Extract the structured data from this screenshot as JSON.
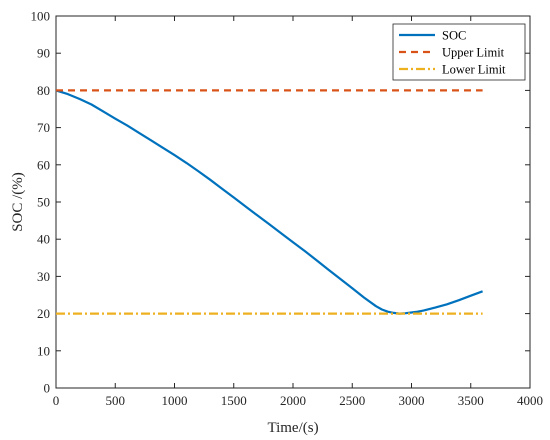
{
  "chart_data": {
    "type": "line",
    "title": "",
    "xlabel": "Time/(s)",
    "ylabel": "SOC /(%)",
    "xlim": [
      0,
      4000
    ],
    "ylim": [
      0,
      100
    ],
    "xticks": [
      0,
      500,
      1000,
      1500,
      2000,
      2500,
      3000,
      3500,
      4000
    ],
    "yticks": [
      0,
      10,
      20,
      30,
      40,
      50,
      60,
      70,
      80,
      90,
      100
    ],
    "grid": false,
    "legend_position": "top-right",
    "series": [
      {
        "name": "SOC",
        "style": "solid",
        "color": "#0072BD",
        "x": [
          0,
          100,
          200,
          300,
          400,
          500,
          600,
          700,
          800,
          900,
          1000,
          1100,
          1200,
          1300,
          1400,
          1500,
          1600,
          1700,
          1800,
          1900,
          2000,
          2100,
          2200,
          2300,
          2400,
          2500,
          2600,
          2700,
          2750,
          2800,
          2850,
          2900,
          2950,
          3000,
          3050,
          3100,
          3200,
          3300,
          3400,
          3500,
          3600
        ],
        "y": [
          80,
          79,
          77.7,
          76.2,
          74.3,
          72.4,
          70.6,
          68.6,
          66.6,
          64.6,
          62.6,
          60.5,
          58.3,
          56,
          53.6,
          51.2,
          48.8,
          46.4,
          44,
          41.6,
          39.2,
          36.8,
          34.3,
          31.8,
          29.3,
          26.8,
          24.3,
          22,
          21.1,
          20.5,
          20.2,
          20,
          20.1,
          20.3,
          20.5,
          20.8,
          21.6,
          22.5,
          23.6,
          24.8,
          26
        ]
      },
      {
        "name": "Upper Limit",
        "style": "dashed",
        "color": "#D95319",
        "x": [
          0,
          3600
        ],
        "y": [
          80,
          80
        ]
      },
      {
        "name": "Lower Limit",
        "style": "dashdot",
        "color": "#EDB120",
        "x": [
          0,
          3600
        ],
        "y": [
          20,
          20
        ]
      }
    ]
  }
}
